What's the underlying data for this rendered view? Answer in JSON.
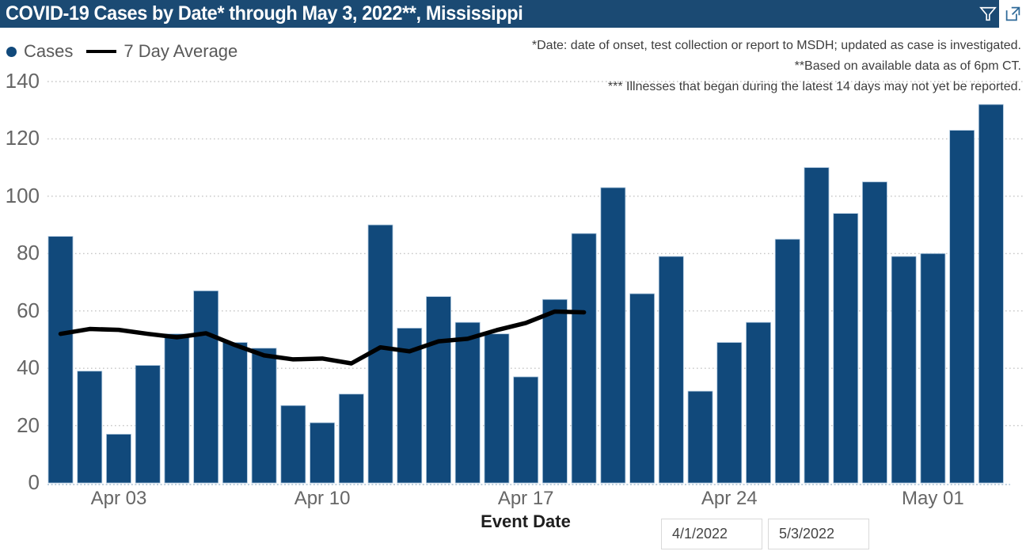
{
  "header": {
    "title": "COVID-19 Cases by Date* through May 3, 2022**, Mississippi"
  },
  "legend": {
    "cases": "Cases",
    "average": "7 Day Average"
  },
  "notes": [
    "*Date: date of onset, test collection or report to MSDH; updated as case is investigated.",
    "**Based on available data as of 6pm CT.",
    "*** Illnesses that began during the latest 14 days may not yet be reported."
  ],
  "filters": {
    "start_date": "4/1/2022",
    "end_date": "5/3/2022"
  },
  "colors": {
    "header_bg": "#1B4A73",
    "bar": "#11497B",
    "bar_stroke": "#A9C4DC",
    "line": "#000000",
    "grid": "#C6C6C6",
    "baseline": "#A9C0D4",
    "axis_text": "#666666",
    "legend_text": "#595959",
    "note_text": "#3D3D3D",
    "icon_blue": "#2F6A99"
  },
  "x_axis": {
    "title": "Event Date",
    "ticks": [
      {
        "index": 2,
        "label": "Apr 03"
      },
      {
        "index": 9,
        "label": "Apr 10"
      },
      {
        "index": 16,
        "label": "Apr 17"
      },
      {
        "index": 23,
        "label": "Apr 24"
      },
      {
        "index": 30,
        "label": "May 01"
      }
    ]
  },
  "y_axis": {
    "ticks": [
      0,
      20,
      40,
      60,
      80,
      100,
      120,
      140
    ]
  },
  "chart_data": {
    "type": "bar",
    "title": "COVID-19 Cases by Date* through May 3, 2022**, Mississippi",
    "xlabel": "Event Date",
    "ylim": [
      0,
      140
    ],
    "grid": "horizontal-dotted",
    "legend_position": "top-left",
    "categories": [
      "Apr 1",
      "Apr 2",
      "Apr 3",
      "Apr 4",
      "Apr 5",
      "Apr 6",
      "Apr 7",
      "Apr 8",
      "Apr 9",
      "Apr 10",
      "Apr 11",
      "Apr 12",
      "Apr 13",
      "Apr 14",
      "Apr 15",
      "Apr 16",
      "Apr 17",
      "Apr 18",
      "Apr 19",
      "Apr 20",
      "Apr 21",
      "Apr 22",
      "Apr 23",
      "Apr 24",
      "Apr 25",
      "Apr 26",
      "Apr 27",
      "Apr 28",
      "Apr 29",
      "Apr 30",
      "May 1",
      "May 2",
      "May 3"
    ],
    "series": [
      {
        "name": "Cases",
        "type": "bar",
        "color": "#11497B",
        "values": [
          86,
          39,
          17,
          41,
          52,
          67,
          49,
          47,
          27,
          21,
          31,
          90,
          54,
          65,
          56,
          52,
          37,
          64,
          87,
          103,
          66,
          79,
          32,
          49,
          56,
          85,
          110,
          94,
          105,
          79,
          80,
          123,
          132
        ]
      },
      {
        "name": "7 Day Average",
        "type": "line",
        "color": "#000000",
        "values": [
          52,
          53.7,
          53.4,
          52,
          50.8,
          52.2,
          48.1,
          44.5,
          43.1,
          43.4,
          41.7,
          47.3,
          45.9,
          49.4,
          50.3,
          53.3,
          55.8,
          59.8,
          59.5,
          null,
          null,
          null,
          null,
          null,
          null,
          null,
          null,
          null,
          null,
          null,
          null,
          null,
          null
        ]
      }
    ]
  }
}
